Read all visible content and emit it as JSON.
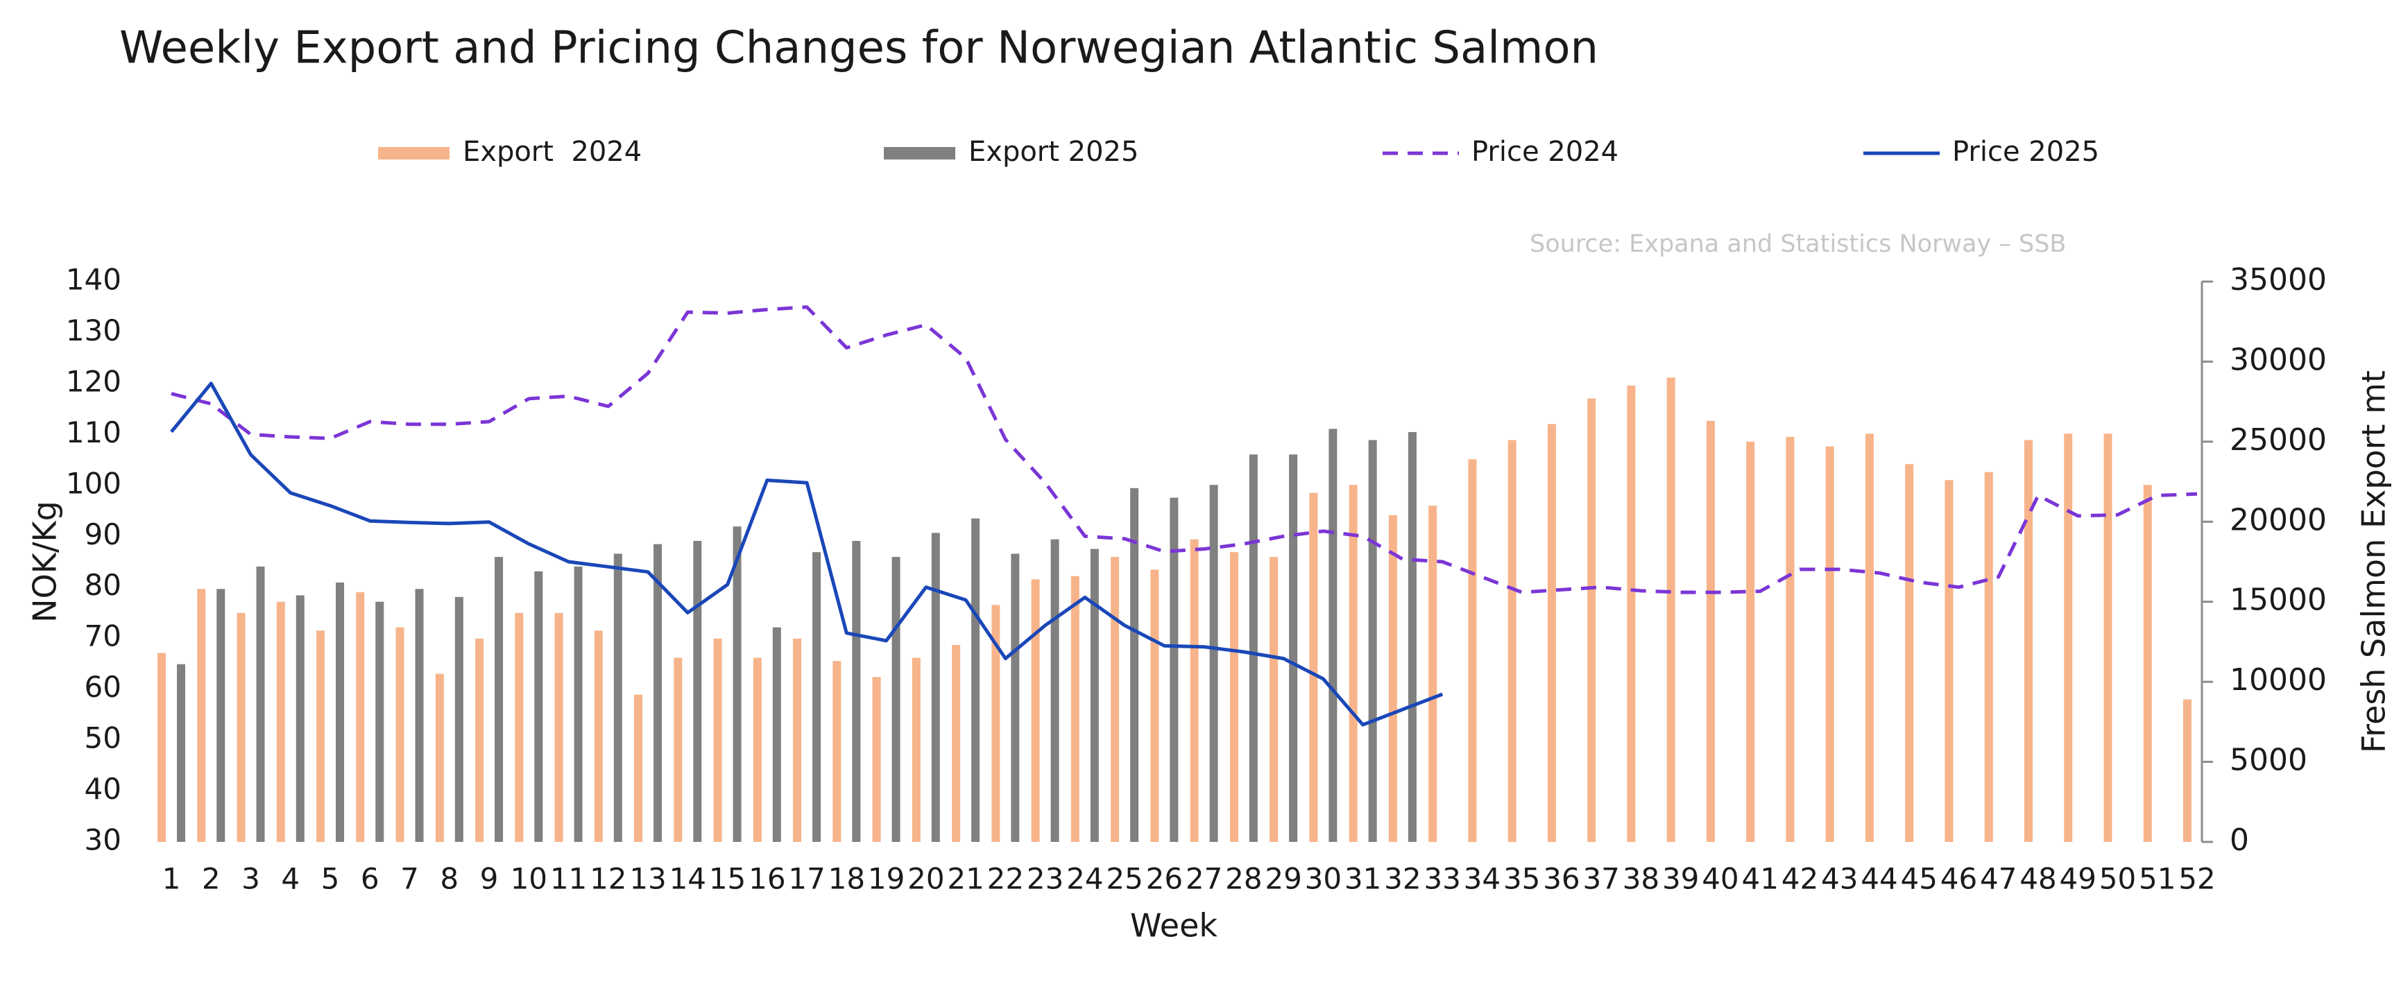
{
  "chart_data": {
    "type": "bar_line",
    "title": "Weekly Export and Pricing Changes for Norwegian Atlantic Salmon",
    "annotation": "Source: Expana and Statistics Norway – SSB",
    "x_label": "Week",
    "y_label": "NOK/Kg",
    "y2_label": "Fresh Salmon Export mt",
    "legend": "top",
    "categories": [
      "1",
      "2",
      "3",
      "4",
      "5",
      "6",
      "7",
      "8",
      "9",
      "10",
      "11",
      "12",
      "13",
      "14",
      "15",
      "16",
      "17",
      "18",
      "19",
      "20",
      "21",
      "22",
      "23",
      "24",
      "25",
      "26",
      "27",
      "28",
      "29",
      "30",
      "31",
      "32",
      "33",
      "34",
      "35",
      "36",
      "37",
      "38",
      "39",
      "40",
      "41",
      "42",
      "43",
      "44",
      "45",
      "46",
      "47",
      "48",
      "49",
      "50",
      "51",
      "52"
    ],
    "ylim": [
      30,
      140
    ],
    "yticks": [
      30,
      40,
      50,
      60,
      70,
      80,
      90,
      100,
      110,
      120,
      130,
      140
    ],
    "y2lim": [
      0,
      35000
    ],
    "y2ticks": [
      0,
      5000,
      10000,
      15000,
      20000,
      25000,
      30000,
      35000
    ],
    "series": [
      {
        "name": "Export  2024",
        "kind": "bar",
        "axis": "y2",
        "color": "#f7b48a",
        "values": [
          11800,
          15800,
          14300,
          15000,
          13200,
          15600,
          13400,
          10500,
          12700,
          14300,
          14300,
          13200,
          9200,
          11500,
          12700,
          11500,
          12700,
          11300,
          10300,
          11500,
          12300,
          14800,
          16400,
          16600,
          17800,
          17000,
          18900,
          18100,
          17800,
          21800,
          22300,
          20400,
          21000,
          23900,
          25100,
          26100,
          27700,
          28500,
          29000,
          26300,
          25000,
          25300,
          24700,
          25500,
          23600,
          22600,
          23100,
          25100,
          25500,
          25500,
          22300,
          8900
        ]
      },
      {
        "name": "Export 2025",
        "kind": "bar",
        "axis": "y2",
        "color": "#808080",
        "values": [
          11100,
          15800,
          17200,
          15400,
          16200,
          15000,
          15800,
          15300,
          17800,
          16900,
          17200,
          18000,
          18600,
          18800,
          19700,
          13400,
          18100,
          18800,
          17800,
          19300,
          20200,
          18000,
          18900,
          18300,
          22100,
          21500,
          22300,
          24200,
          24200,
          25800,
          25100,
          25600,
          null,
          null,
          null,
          null,
          null,
          null,
          null,
          null,
          null,
          null,
          null,
          null,
          null,
          null,
          null,
          null,
          null,
          null,
          null,
          null
        ]
      },
      {
        "name": "Price 2024",
        "kind": "line",
        "dashed": true,
        "color": "#7b35d6",
        "values": [
          118,
          116,
          110,
          109.5,
          109.2,
          112.5,
          112,
          112,
          112.5,
          117,
          117.5,
          115.5,
          122,
          134,
          133.8,
          134.5,
          135,
          127,
          129.5,
          131.5,
          125,
          109,
          100.5,
          90,
          89.5,
          87,
          87.5,
          88.5,
          90,
          91,
          90,
          85.5,
          85,
          82,
          79,
          79.5,
          80,
          79.3,
          79,
          79,
          79.2,
          83.5,
          83.5,
          82.8,
          81,
          80,
          82,
          98,
          94,
          94.2,
          98,
          98.3
        ]
      },
      {
        "name": "Price 2025",
        "kind": "line",
        "dashed": false,
        "color": "#1a47b8",
        "values": [
          110.5,
          120,
          106,
          98.5,
          96,
          93,
          92.7,
          92.5,
          92.8,
          88.5,
          85,
          84,
          83,
          75,
          80.5,
          101,
          100.5,
          71,
          69.5,
          80,
          77.5,
          66,
          72.5,
          78,
          72.5,
          68.5,
          68.3,
          67.3,
          66,
          62,
          53,
          56,
          59,
          null,
          null,
          null,
          null,
          null,
          null,
          null,
          null,
          null,
          null,
          null,
          null,
          null,
          null,
          null,
          null,
          null,
          null,
          null
        ]
      }
    ]
  }
}
